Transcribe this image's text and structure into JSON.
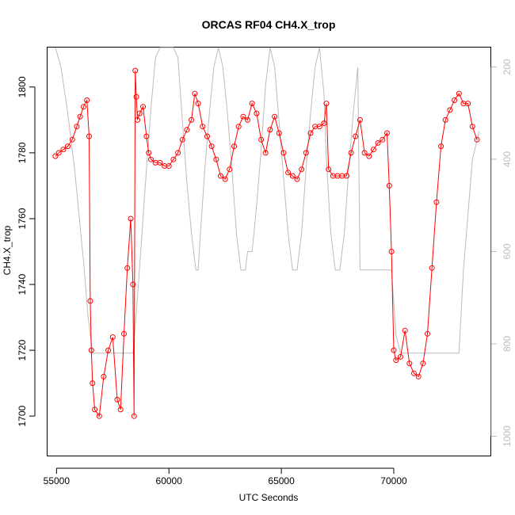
{
  "chart_data": {
    "type": "scatter",
    "title": "ORCAS RF04 CH4.X_trop",
    "xlabel": "UTC Seconds",
    "ylabel": "CH4.X_trop",
    "xlim": [
      54600,
      74300
    ],
    "ylim": [
      1688,
      1812
    ],
    "xticks": [
      55000,
      60000,
      65000,
      70000
    ],
    "yticks": [
      1700,
      1720,
      1740,
      1760,
      1780,
      1800
    ],
    "y2lim_reversed": [
      1042,
      158
    ],
    "y2ticks": [
      200,
      400,
      600,
      800,
      1000
    ],
    "grid": false,
    "colors": {
      "series": "#ff0000",
      "secondary": "#bbbbbb",
      "axis": "#000000"
    },
    "series": [
      {
        "marker": "open-circle",
        "x": [
          54950,
          55100,
          55300,
          55500,
          55700,
          55900,
          56050,
          56200,
          56350,
          56450,
          56500,
          56550,
          56600,
          56700,
          56900,
          57100,
          57300,
          57500,
          57700,
          57850,
          58000,
          58150,
          58300,
          58400,
          58450,
          58500,
          58550,
          58600,
          58700,
          58850,
          59000,
          59100,
          59200,
          59400,
          59600,
          59800,
          60000,
          60200,
          60400,
          60600,
          60800,
          61000,
          61150,
          61300,
          61500,
          61700,
          61900,
          62100,
          62300,
          62500,
          62700,
          62900,
          63100,
          63300,
          63500,
          63700,
          63900,
          64100,
          64300,
          64500,
          64700,
          64900,
          65100,
          65300,
          65500,
          65700,
          65900,
          66100,
          66300,
          66500,
          66700,
          66900,
          67000,
          67100,
          67300,
          67500,
          67700,
          67900,
          68100,
          68300,
          68500,
          68700,
          68900,
          69100,
          69300,
          69500,
          69700,
          69800,
          69900,
          70000,
          70100,
          70300,
          70500,
          70700,
          70900,
          71100,
          71300,
          71500,
          71700,
          71900,
          72100,
          72300,
          72500,
          72700,
          72900,
          73100,
          73300,
          73500,
          73700
        ],
        "y": [
          1779,
          1780,
          1781,
          1782,
          1784,
          1788,
          1791,
          1794,
          1796,
          1785,
          1735,
          1720,
          1710,
          1702,
          1700,
          1712,
          1720,
          1724,
          1705,
          1702,
          1725,
          1745,
          1760,
          1740,
          1700,
          1805,
          1797,
          1790,
          1792,
          1794,
          1785,
          1780,
          1778,
          1777,
          1777,
          1776,
          1776,
          1778,
          1780,
          1784,
          1787,
          1790,
          1798,
          1795,
          1788,
          1785,
          1782,
          1778,
          1773,
          1772,
          1775,
          1782,
          1788,
          1791,
          1790,
          1795,
          1792,
          1784,
          1780,
          1787,
          1791,
          1786,
          1780,
          1774,
          1773,
          1772,
          1775,
          1780,
          1786,
          1788,
          1788,
          1789,
          1795,
          1775,
          1773,
          1773,
          1773,
          1773,
          1780,
          1785,
          1790,
          1780,
          1779,
          1781,
          1783,
          1784,
          1786,
          1770,
          1750,
          1720,
          1717,
          1718,
          1726,
          1716,
          1713,
          1712,
          1716,
          1725,
          1745,
          1765,
          1782,
          1790,
          1793,
          1796,
          1798,
          1795,
          1795,
          1788,
          1784
        ]
      }
    ],
    "secondary_series": [
      {
        "x": [
          54950,
          55200,
          55500,
          55800,
          56000,
          56200,
          56400,
          56600,
          56800,
          57000,
          57200,
          57400,
          57600,
          57800,
          58000,
          58200,
          58400,
          58600,
          58800,
          59000,
          59200,
          59400,
          59600,
          59800,
          60000,
          60200,
          60400,
          60600,
          60800,
          61000,
          61200,
          61300,
          61400,
          61600,
          61800,
          62000,
          62200,
          62400,
          62600,
          62800,
          63000,
          63200,
          63400,
          63500,
          63700,
          63900,
          64100,
          64300,
          64500,
          64700,
          64900,
          65100,
          65300,
          65500,
          65700,
          65900,
          66100,
          66300,
          66500,
          66700,
          66900,
          67000,
          67200,
          67400,
          67600,
          67800,
          68000,
          68200,
          68400,
          68500,
          68700,
          68900,
          69100,
          69300,
          69500,
          69700,
          69900,
          70100,
          70300,
          70500,
          70700,
          70900,
          71100,
          71300,
          71500,
          71700,
          71900,
          72100,
          72300,
          72500,
          72700,
          72900,
          73100,
          73300,
          73500,
          73800
        ],
        "y": [
          140,
          200,
          300,
          420,
          520,
          620,
          740,
          820,
          820,
          820,
          820,
          820,
          820,
          820,
          820,
          820,
          820,
          700,
          560,
          420,
          290,
          180,
          100,
          80,
          60,
          80,
          180,
          320,
          450,
          560,
          640,
          640,
          560,
          420,
          300,
          200,
          140,
          200,
          300,
          420,
          560,
          640,
          640,
          600,
          600,
          500,
          380,
          240,
          140,
          200,
          320,
          440,
          560,
          640,
          640,
          560,
          420,
          300,
          200,
          140,
          260,
          400,
          560,
          640,
          640,
          560,
          420,
          300,
          200,
          640,
          640,
          640,
          640,
          640,
          640,
          640,
          640,
          780,
          820,
          820,
          820,
          820,
          820,
          820,
          820,
          820,
          820,
          820,
          820,
          820,
          820,
          820,
          640,
          520,
          400,
          340
        ]
      }
    ]
  }
}
